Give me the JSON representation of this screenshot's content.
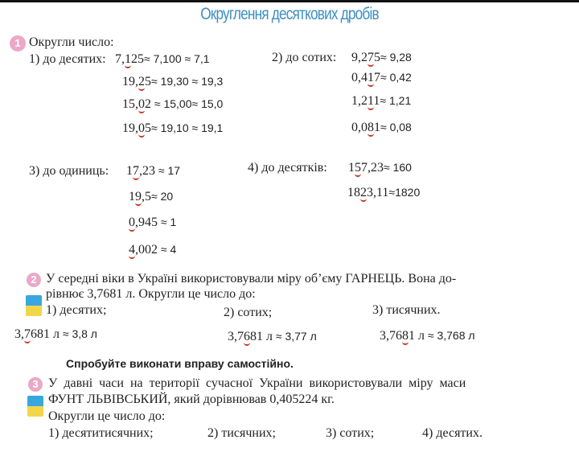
{
  "title": "Округлення десяткових дробів",
  "task1": {
    "number": "1",
    "prompt": "Округли число:",
    "part1": {
      "label": "1) до десятих:",
      "rows": [
        {
          "pre": "7,",
          "u": "1",
          "post": "25",
          "ans": "≈ 7,100 ≈ 7,1"
        },
        {
          "pre": "19,",
          "u": "2",
          "post": "5",
          "ans": "≈ 19,30 ≈ 19,3"
        },
        {
          "pre": "15,",
          "u": "0",
          "post": "2",
          "ans": " ≈ 15,00≈ 15,0"
        },
        {
          "pre": "19,",
          "u": "0",
          "post": "5",
          "ans": "≈ 19,10 ≈ 19,1"
        }
      ]
    },
    "part2": {
      "label": "2) до сотих:",
      "rows": [
        {
          "pre": "9,2",
          "u": "7",
          "post": "5",
          "ans": "≈ 9,28"
        },
        {
          "pre": "0,4",
          "u": "1",
          "post": "7",
          "ans": "≈ 0,42"
        },
        {
          "pre": "1,2",
          "u": "1",
          "post": "1",
          "ans": "≈  1,21"
        },
        {
          "pre": "0,0",
          "u": "8",
          "post": "1",
          "ans": "≈ 0,08"
        }
      ]
    },
    "part3": {
      "label": "3) до одиниць:",
      "rows": [
        {
          "pre": "1",
          "u": "7",
          "post": ",23",
          "ans": " ≈ 17"
        },
        {
          "pre": "1",
          "u": "9",
          "post": ",5",
          "ans": "≈ 20"
        },
        {
          "pre": "",
          "u": "0",
          "post": ",945",
          "ans": " ≈ 1"
        },
        {
          "pre": "",
          "u": "4",
          "post": ",002",
          "ans": " ≈ 4"
        }
      ]
    },
    "part4": {
      "label": "4)  до десятків:",
      "rows": [
        {
          "pre": "1",
          "u": "5",
          "post": "7,23",
          "ans": "≈ 160"
        },
        {
          "pre": "18",
          "u": "2",
          "post": "3,11",
          "ans": "≈1820"
        }
      ]
    }
  },
  "task2": {
    "number": "2",
    "line1": "У середні віки в Україні використовували міру об’єму ГАРНЕЦЬ. Вона до-",
    "line2": "рівнює 3,7681 л. Округли це число до:",
    "options": [
      "1) десятих;",
      "2) сотих;",
      "3) тисячних."
    ],
    "answers": [
      {
        "pre": "3,",
        "u": "7",
        "post": "681 л",
        "ans": " ≈ 3,8 л"
      },
      {
        "pre": "3,7",
        "u": "6",
        "post": "81 л",
        "ans": " ≈ 3,77 л"
      },
      {
        "pre": "3,76",
        "u": "8",
        "post": "1 л",
        "ans": " ≈ 3,768 л"
      }
    ]
  },
  "hint": "Спробуйте виконати вправу самостійно.",
  "task3": {
    "number": "3",
    "line1": "У давні часи на території сучасної України використовували міру маси",
    "line2": "ФУНТ ЛЬВІВСЬКИЙ, який дорівнював 0,405224 кг.",
    "line3": "Округли це число до:",
    "options": [
      "1) десятитисячних;",
      "2) тисячних;",
      "3) сотих;",
      "4) десятих."
    ]
  },
  "colors": {
    "title": "#3d8fc0",
    "badge": "#eba8c8",
    "underline": "#c0392b",
    "flag_blue": "#3aa6e0",
    "flag_yellow": "#f3d54a"
  }
}
